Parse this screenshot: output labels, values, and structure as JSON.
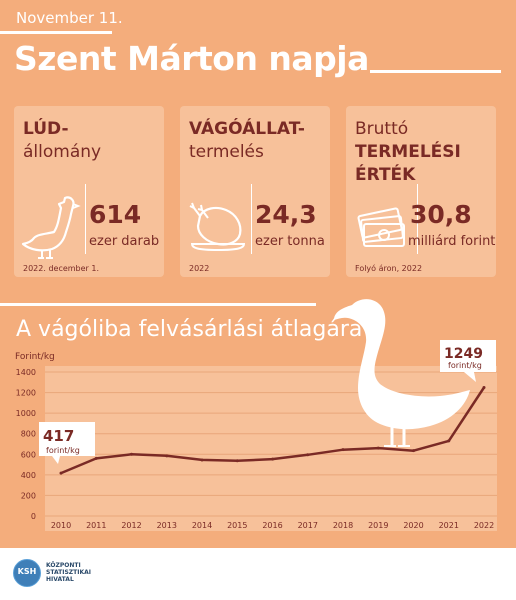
{
  "header": {
    "date": "November 11.",
    "title": "Szent Márton napja"
  },
  "cards": [
    {
      "label_bold": "LÚD-",
      "label_rest": "állomány",
      "value": "614",
      "unit": "ezer darab",
      "footnote": "2022. december 1.",
      "icon": "goose-icon"
    },
    {
      "label_bold": "VÁGÓÁLLAT-",
      "label_rest": "termelés",
      "value": "24,3",
      "unit": "ezer tonna",
      "footnote": "2022",
      "icon": "roast-poultry-icon"
    },
    {
      "label_pre": "Bruttó",
      "label_bold": "TERMELÉSI",
      "label_bold2": "ÉRTÉK",
      "value": "30,8",
      "unit": "milliárd forint",
      "footnote": "Folyó áron, 2022",
      "icon": "money-stack-icon"
    }
  ],
  "section_title": "A vágóliba felvásárlási átlagára",
  "chart_data": {
    "type": "line",
    "ylabel": "Forint/kg",
    "x": [
      "2010",
      "2011",
      "2012",
      "2013",
      "2014",
      "2015",
      "2016",
      "2017",
      "2018",
      "2019",
      "2020",
      "2021",
      "2022"
    ],
    "y_ticks": [
      "0",
      "200",
      "400",
      "600",
      "800",
      "1000",
      "1200",
      "1400"
    ],
    "ylim": [
      0,
      1400
    ],
    "series": [
      {
        "values": [
          417,
          560,
          600,
          585,
          545,
          537,
          553,
          595,
          645,
          660,
          635,
          730,
          1249
        ]
      }
    ],
    "annotations": [
      {
        "value": "417",
        "unit": "forint/kg"
      },
      {
        "value": "1249",
        "unit": "forint/kg"
      }
    ],
    "grid": true,
    "colors": {
      "line": "#7a2a25",
      "panel": "#f7c19a",
      "grid": "#e9a67a"
    }
  },
  "footer": {
    "logo": "KSH",
    "name_lines": [
      "KÖZPONTI",
      "STATISZTIKAI",
      "HIVATAL"
    ]
  }
}
